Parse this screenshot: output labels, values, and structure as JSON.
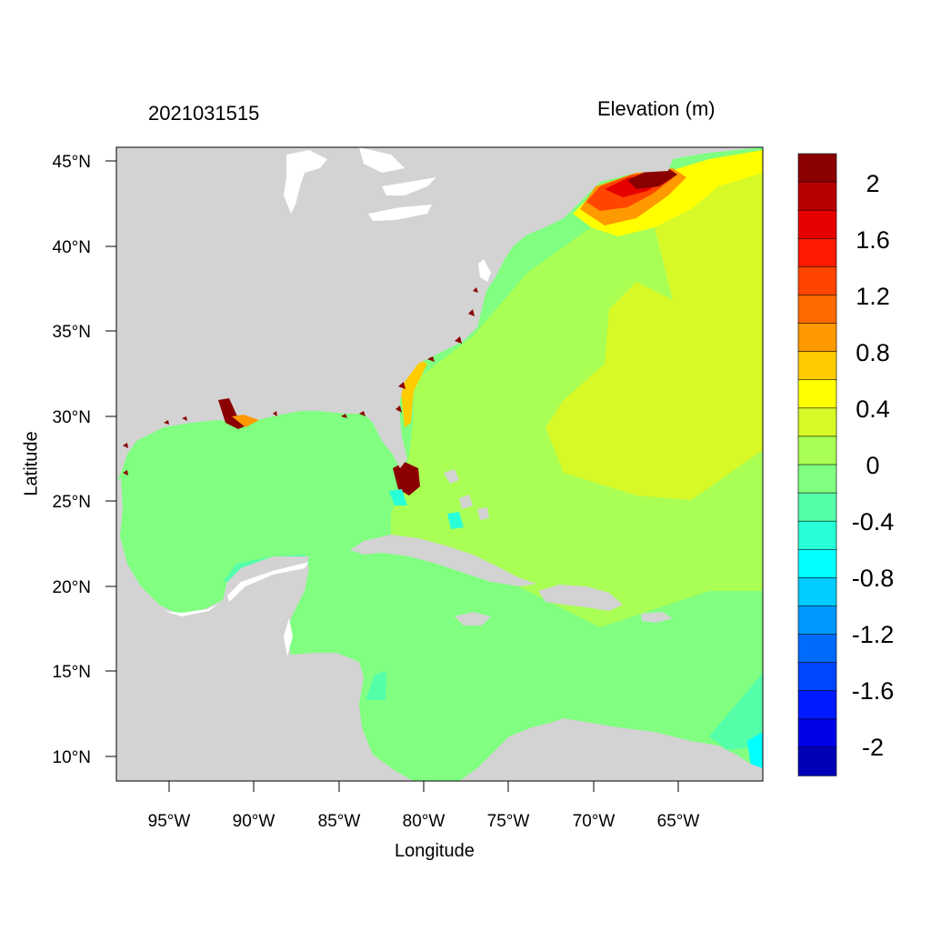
{
  "header": {
    "date": "2021031515",
    "variable": "Elevation (m)"
  },
  "axes": {
    "x_title": "Longitude",
    "y_title": "Latitude",
    "x_ticks": [
      "95°W",
      "90°W",
      "85°W",
      "80°W",
      "75°W",
      "70°W",
      "65°W"
    ],
    "y_ticks": [
      "45°N",
      "40°N",
      "35°N",
      "30°N",
      "25°N",
      "20°N",
      "15°N",
      "10°N"
    ],
    "lon_range": [
      -98,
      -61
    ],
    "lat_range": [
      8.5,
      46
    ]
  },
  "colorbar": {
    "levels": [
      2.2,
      2.0,
      1.8,
      1.6,
      1.4,
      1.2,
      1.0,
      0.8,
      0.6,
      0.4,
      0.2,
      0.0,
      -0.2,
      -0.4,
      -0.6,
      -0.8,
      -1.0,
      -1.2,
      -1.4,
      -1.6,
      -1.8,
      -2.0,
      -2.2
    ],
    "labels": [
      "2",
      "1.6",
      "1.2",
      "0.8",
      "0.4",
      "0",
      "-0.4",
      "-0.8",
      "-1.2",
      "-1.6",
      "-2"
    ],
    "colors": [
      "#8b0000",
      "#b80000",
      "#e60000",
      "#ff1a00",
      "#ff4500",
      "#ff6a00",
      "#ff9900",
      "#ffcc00",
      "#ffff00",
      "#d7f928",
      "#aaff55",
      "#80ff80",
      "#55ffaa",
      "#28ffd7",
      "#00ffff",
      "#00ccff",
      "#0099ff",
      "#006aff",
      "#0045ff",
      "#001aff",
      "#0000e6",
      "#0000b8"
    ]
  },
  "map_colors": {
    "land": "#d3d3d3",
    "lakes": "#ffffff",
    "ocean_base": "#80ff80"
  }
}
